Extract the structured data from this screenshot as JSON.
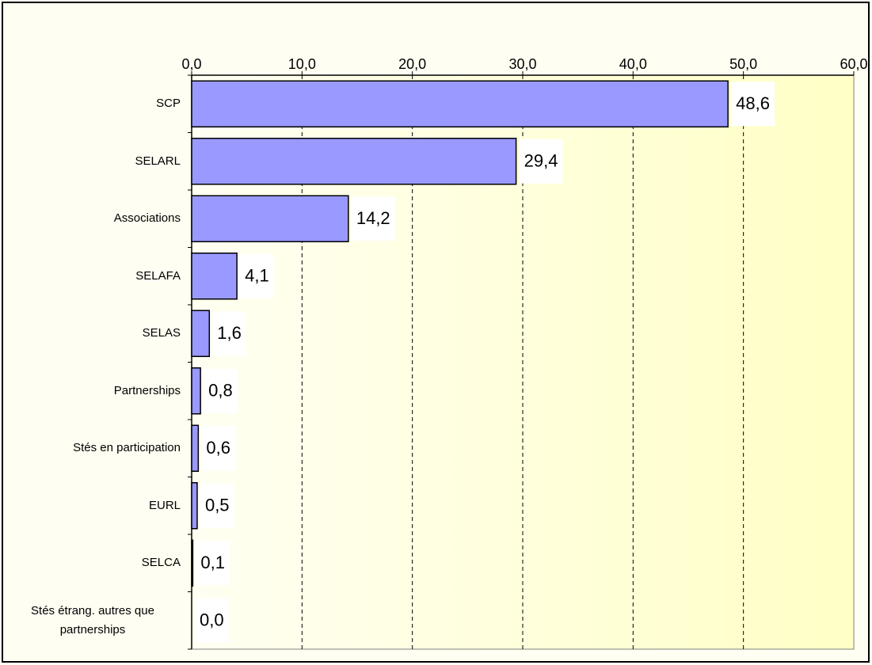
{
  "chart_data": {
    "type": "bar",
    "orientation": "horizontal",
    "categories": [
      "SCP",
      "SELARL",
      "Associations",
      "SELAFA",
      "SELAS",
      "Partnerships",
      "Stés en participation",
      "EURL",
      "SELCA",
      "Stés étrang. autres que partnerships"
    ],
    "values": [
      48.6,
      29.4,
      14.2,
      4.1,
      1.6,
      0.8,
      0.6,
      0.5,
      0.1,
      0.0
    ],
    "value_labels": [
      "48,6",
      "29,4",
      "14,2",
      "4,1",
      "1,6",
      "0,8",
      "0,6",
      "0,5",
      "0,1",
      "0,0"
    ],
    "color": "#9999ff",
    "xlim": [
      0,
      60
    ],
    "xticks": [
      {
        "value": 0,
        "label": "0,0"
      },
      {
        "value": 10,
        "label": "10,0"
      },
      {
        "value": 20,
        "label": "20,0"
      },
      {
        "value": 30,
        "label": "30,0"
      },
      {
        "value": 40,
        "label": "40,0"
      },
      {
        "value": 50,
        "label": "50,0"
      },
      {
        "value": 60,
        "label": "60,0"
      }
    ],
    "grid": true
  }
}
